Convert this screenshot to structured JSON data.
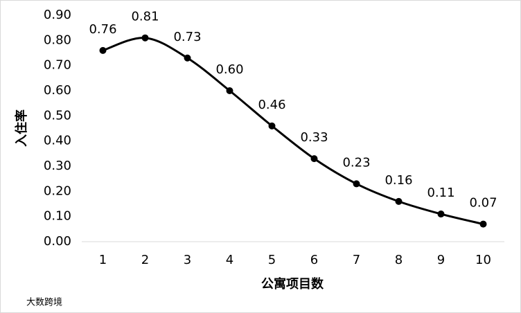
{
  "chart_data": {
    "type": "line",
    "xlabel": "公寓项目数",
    "ylabel": "入住率",
    "categories": [
      "1",
      "2",
      "3",
      "4",
      "5",
      "6",
      "7",
      "8",
      "9",
      "10"
    ],
    "values": [
      0.76,
      0.81,
      0.73,
      0.6,
      0.46,
      0.33,
      0.23,
      0.16,
      0.11,
      0.07
    ],
    "value_labels": [
      "0.76",
      "0.81",
      "0.73",
      "0.60",
      "0.46",
      "0.33",
      "0.23",
      "0.16",
      "0.11",
      "0.07"
    ],
    "color": "#000000",
    "smooth": true,
    "ylim": [
      0,
      0.9
    ],
    "yticks": [
      {
        "value": 0,
        "label": "0.00"
      },
      {
        "value": 0.1,
        "label": "0.10"
      },
      {
        "value": 0.2,
        "label": "0.20"
      },
      {
        "value": 0.3,
        "label": "0.30"
      },
      {
        "value": 0.4,
        "label": "0.40"
      },
      {
        "value": 0.5,
        "label": "0.50"
      },
      {
        "value": 0.6,
        "label": "0.60"
      },
      {
        "value": 0.7,
        "label": "0.70"
      },
      {
        "value": 0.8,
        "label": "0.80"
      },
      {
        "value": 0.9,
        "label": "0.90"
      }
    ],
    "grid": false,
    "watermark": "大数跨境"
  }
}
